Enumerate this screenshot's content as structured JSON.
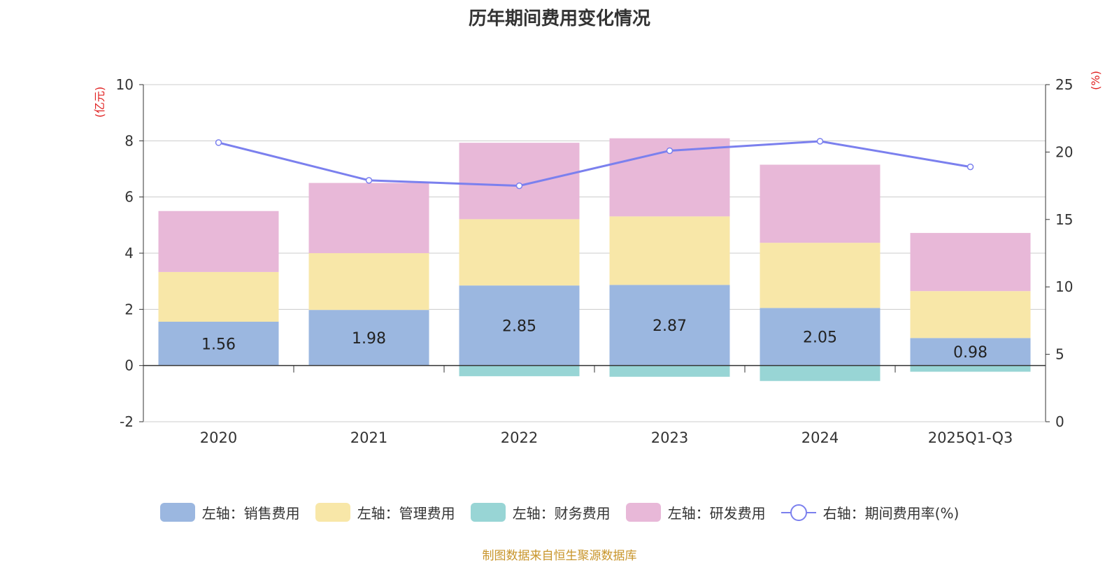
{
  "chart_data": {
    "type": "bar",
    "title": "历年期间费用变化情况",
    "categories": [
      "2020",
      "2021",
      "2022",
      "2023",
      "2024",
      "2025Q1-Q3"
    ],
    "left_axis": {
      "unit_label": "(亿元)",
      "ylim": [
        -2,
        10
      ],
      "ticks": [
        -2,
        0,
        2,
        4,
        6,
        8,
        10
      ]
    },
    "right_axis": {
      "unit_label": "(%)",
      "ylim": [
        0,
        25
      ],
      "ticks": [
        0,
        5,
        10,
        15,
        20,
        25
      ]
    },
    "series": [
      {
        "name": "左轴：销售费用",
        "axis": "left",
        "kind": "bar",
        "color": "#9bb7e0",
        "values": [
          1.56,
          1.98,
          2.85,
          2.87,
          2.05,
          0.98
        ],
        "show_labels": true
      },
      {
        "name": "左轴：管理费用",
        "axis": "left",
        "kind": "bar",
        "color": "#f8e7a8",
        "values": [
          1.77,
          2.02,
          2.36,
          2.44,
          2.32,
          1.67
        ],
        "show_labels": false
      },
      {
        "name": "左轴：财务费用",
        "axis": "left",
        "kind": "bar",
        "color": "#98d5d5",
        "values": [
          0.0,
          0.0,
          -0.38,
          -0.4,
          -0.55,
          -0.22
        ],
        "show_labels": false
      },
      {
        "name": "左轴：研发费用",
        "axis": "left",
        "kind": "bar",
        "color": "#e8b8d8",
        "values": [
          2.17,
          2.5,
          2.72,
          2.78,
          2.78,
          2.07
        ],
        "show_labels": false
      },
      {
        "name": "右轴：期间费用率(%)",
        "axis": "right",
        "kind": "line",
        "color": "#7b80ee",
        "values": [
          20.7,
          17.9,
          17.5,
          20.1,
          20.8,
          18.9
        ],
        "show_labels": false
      }
    ]
  },
  "source": "制图数据来自恒生聚源数据库"
}
